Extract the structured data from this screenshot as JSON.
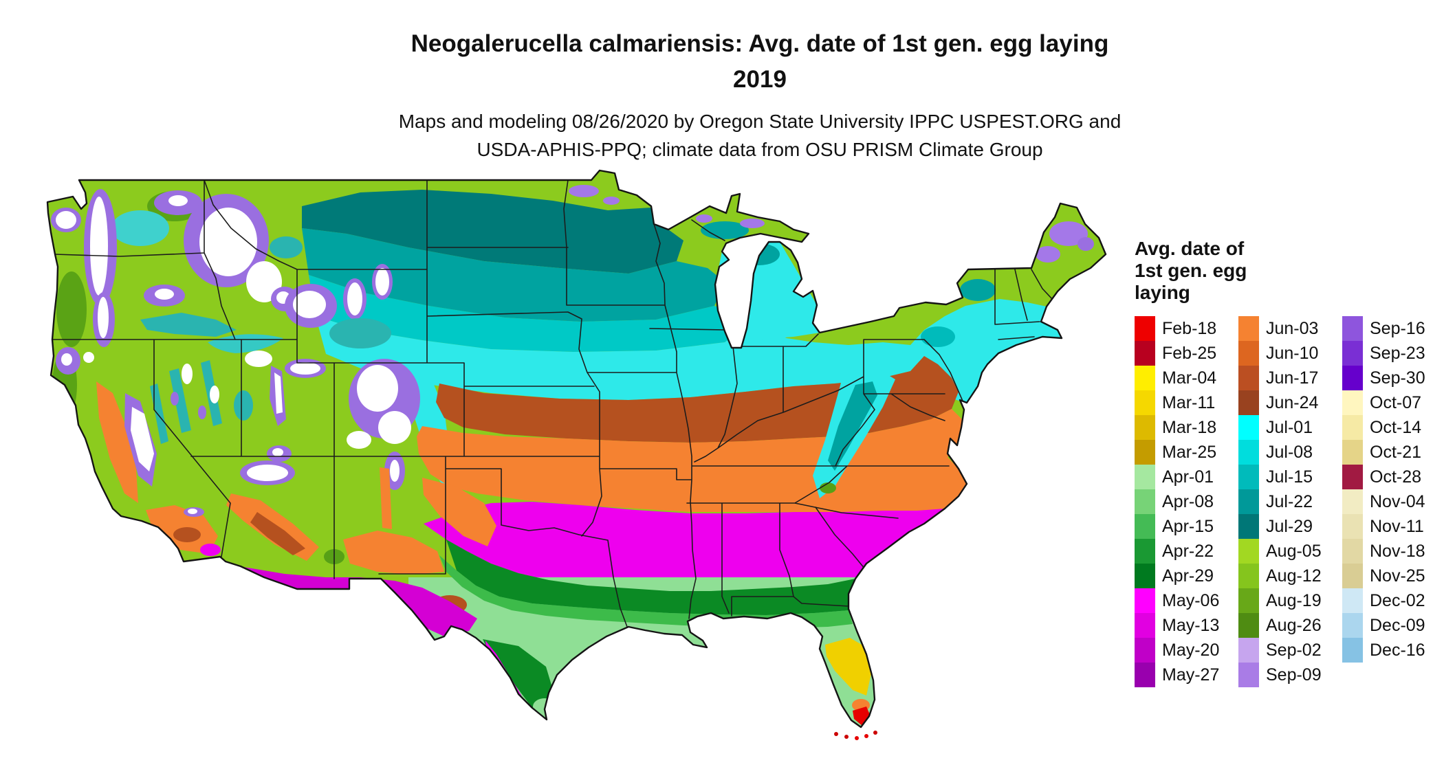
{
  "title": {
    "line1": "Neogalerucella calmariensis: Avg. date of 1st gen. egg laying",
    "line2": "2019"
  },
  "subtitle": {
    "line1": "Maps and modeling 08/26/2020 by Oregon State University IPPC USPEST.ORG and",
    "line2": "USDA-APHIS-PPQ; climate data from OSU PRISM Climate Group"
  },
  "map": {
    "label": "Contiguous United States map colored by average date of first generation egg laying"
  },
  "legend": {
    "title": "Avg. date of\n1st gen. egg\nlaying",
    "columns": [
      [
        {
          "label": "Feb-18",
          "color": "#ee0000"
        },
        {
          "label": "Feb-25",
          "color": "#b8001f"
        },
        {
          "label": "Mar-04",
          "color": "#ffee00"
        },
        {
          "label": "Mar-11",
          "color": "#f5d800"
        },
        {
          "label": "Mar-18",
          "color": "#ddba00"
        },
        {
          "label": "Mar-25",
          "color": "#c49c00"
        },
        {
          "label": "Apr-01",
          "color": "#a5e8a0"
        },
        {
          "label": "Apr-08",
          "color": "#77d377"
        },
        {
          "label": "Apr-15",
          "color": "#44bb55"
        },
        {
          "label": "Apr-22",
          "color": "#1a9933"
        },
        {
          "label": "Apr-29",
          "color": "#007a1f"
        },
        {
          "label": "May-06",
          "color": "#ff00ff"
        },
        {
          "label": "May-13",
          "color": "#e100e1"
        },
        {
          "label": "May-20",
          "color": "#c000c8"
        },
        {
          "label": "May-27",
          "color": "#9900ae"
        }
      ],
      [
        {
          "label": "Jun-03",
          "color": "#f58231"
        },
        {
          "label": "Jun-10",
          "color": "#dd6620"
        },
        {
          "label": "Jun-17",
          "color": "#bb4f22"
        },
        {
          "label": "Jun-24",
          "color": "#99421f"
        },
        {
          "label": "Jul-01",
          "color": "#00ffff"
        },
        {
          "label": "Jul-08",
          "color": "#00dddd"
        },
        {
          "label": "Jul-15",
          "color": "#00bbbb"
        },
        {
          "label": "Jul-22",
          "color": "#009999"
        },
        {
          "label": "Jul-29",
          "color": "#007777"
        },
        {
          "label": "Aug-05",
          "color": "#a2d822"
        },
        {
          "label": "Aug-12",
          "color": "#85c51d"
        },
        {
          "label": "Aug-19",
          "color": "#68a818"
        },
        {
          "label": "Aug-26",
          "color": "#4f8c12"
        },
        {
          "label": "Sep-02",
          "color": "#c6a5ee"
        },
        {
          "label": "Sep-09",
          "color": "#a97ce6"
        }
      ],
      [
        {
          "label": "Sep-16",
          "color": "#8e55dd"
        },
        {
          "label": "Sep-23",
          "color": "#7a2fd4"
        },
        {
          "label": "Sep-30",
          "color": "#6600cc"
        },
        {
          "label": "Oct-07",
          "color": "#fff6bf"
        },
        {
          "label": "Oct-14",
          "color": "#f6eaa5"
        },
        {
          "label": "Oct-21",
          "color": "#e5d488"
        },
        {
          "label": "Oct-28",
          "color": "#a11a42"
        },
        {
          "label": "Nov-04",
          "color": "#f2ecc3"
        },
        {
          "label": "Nov-11",
          "color": "#eae2b3"
        },
        {
          "label": "Nov-18",
          "color": "#e2d8a4"
        },
        {
          "label": "Nov-25",
          "color": "#d9cd94"
        },
        {
          "label": "Dec-02",
          "color": "#cfe8f5"
        },
        {
          "label": "Dec-09",
          "color": "#abd6ee"
        },
        {
          "label": "Dec-16",
          "color": "#86c2e4"
        }
      ]
    ]
  }
}
